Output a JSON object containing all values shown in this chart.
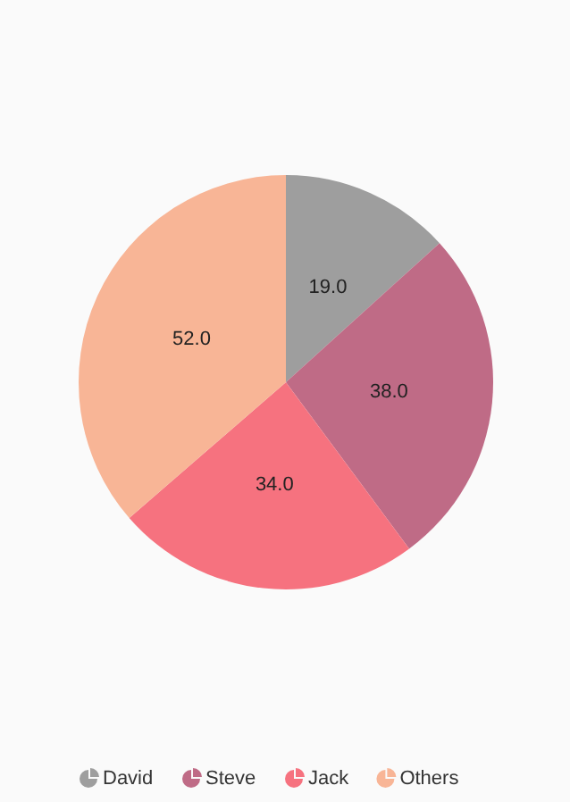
{
  "chart_data": {
    "type": "pie",
    "categories": [
      "David",
      "Steve",
      "Jack",
      "Others"
    ],
    "values": [
      19,
      38,
      34,
      52
    ],
    "colors": [
      "#9e9e9e",
      "#bf6b86",
      "#f6727f",
      "#f8b596"
    ],
    "value_labels": [
      "19.0",
      "38.0",
      "34.0",
      "52.0"
    ],
    "legend": "bottom"
  }
}
